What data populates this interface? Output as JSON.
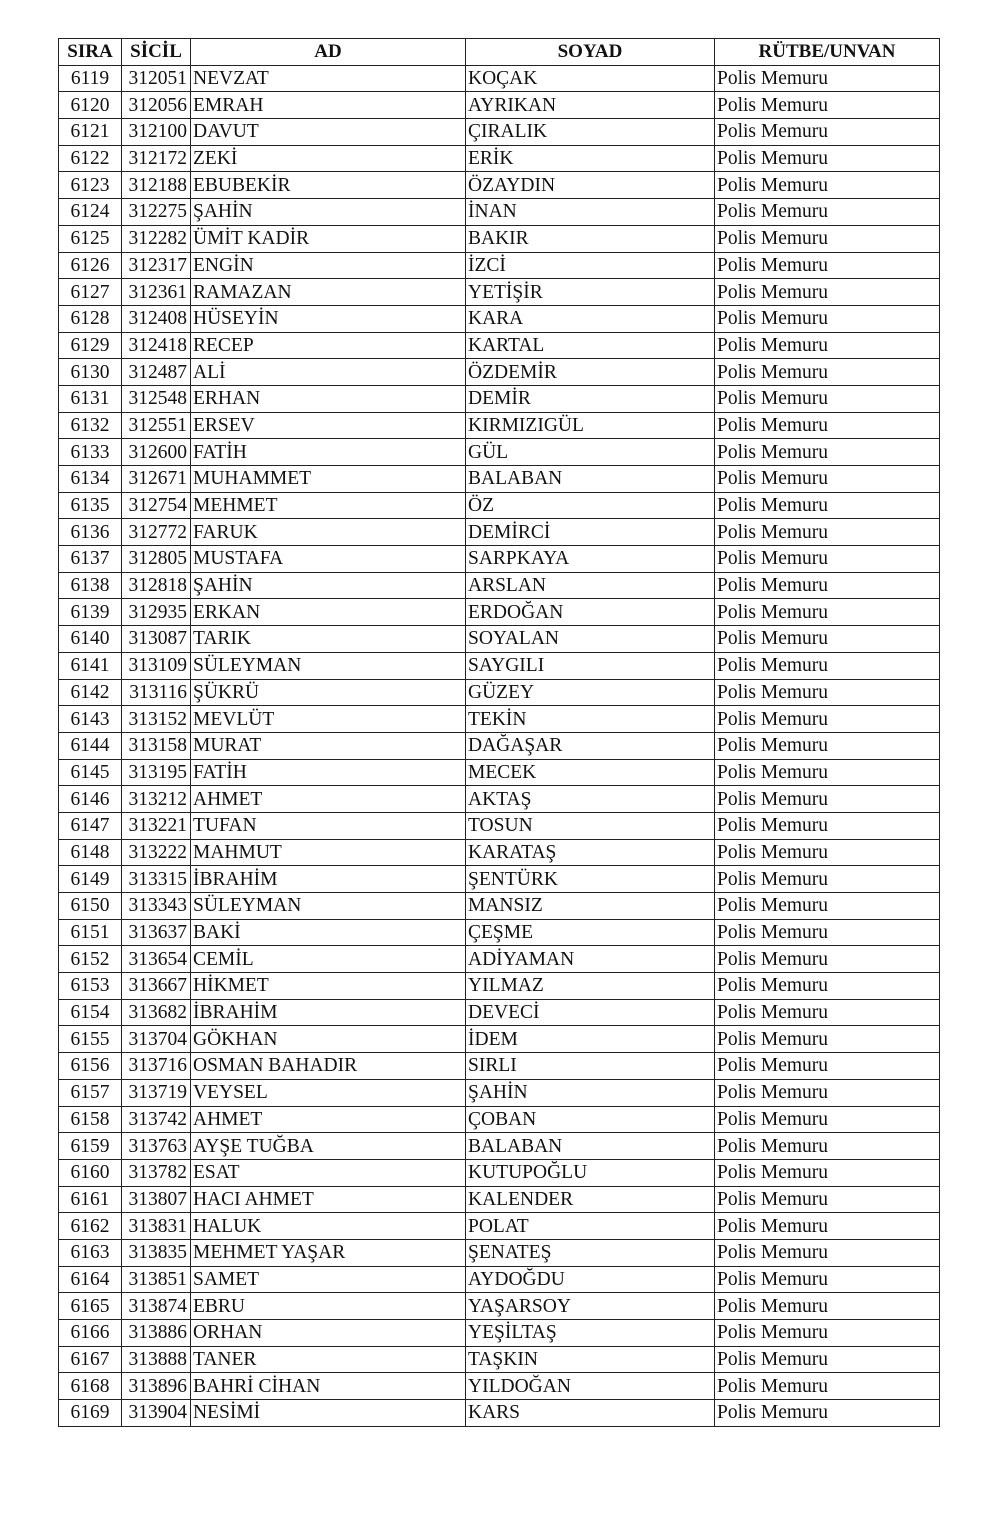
{
  "headers": [
    "SIRA",
    "SİCİL",
    "AD",
    "SOYAD",
    "RÜTBE/UNVAN"
  ],
  "rows": [
    [
      "6119",
      "312051",
      "NEVZAT",
      "KOÇAK",
      "Polis Memuru"
    ],
    [
      "6120",
      "312056",
      "EMRAH",
      "AYRIKAN",
      "Polis Memuru"
    ],
    [
      "6121",
      "312100",
      "DAVUT",
      "ÇIRALIK",
      "Polis Memuru"
    ],
    [
      "6122",
      "312172",
      "ZEKİ",
      "ERİK",
      "Polis Memuru"
    ],
    [
      "6123",
      "312188",
      "EBUBEKİR",
      "ÖZAYDIN",
      "Polis Memuru"
    ],
    [
      "6124",
      "312275",
      "ŞAHİN",
      "İNAN",
      "Polis Memuru"
    ],
    [
      "6125",
      "312282",
      "ÜMİT KADİR",
      "BAKIR",
      "Polis Memuru"
    ],
    [
      "6126",
      "312317",
      "ENGİN",
      "İZCİ",
      "Polis Memuru"
    ],
    [
      "6127",
      "312361",
      "RAMAZAN",
      "YETİŞİR",
      "Polis Memuru"
    ],
    [
      "6128",
      "312408",
      "HÜSEYİN",
      "KARA",
      "Polis Memuru"
    ],
    [
      "6129",
      "312418",
      "RECEP",
      "KARTAL",
      "Polis Memuru"
    ],
    [
      "6130",
      "312487",
      "ALİ",
      "ÖZDEMİR",
      "Polis Memuru"
    ],
    [
      "6131",
      "312548",
      "ERHAN",
      "DEMİR",
      "Polis Memuru"
    ],
    [
      "6132",
      "312551",
      "ERSEV",
      "KIRMIZIGÜL",
      "Polis Memuru"
    ],
    [
      "6133",
      "312600",
      "FATİH",
      "GÜL",
      "Polis Memuru"
    ],
    [
      "6134",
      "312671",
      "MUHAMMET",
      "BALABAN",
      "Polis Memuru"
    ],
    [
      "6135",
      "312754",
      "MEHMET",
      "ÖZ",
      "Polis Memuru"
    ],
    [
      "6136",
      "312772",
      "FARUK",
      "DEMİRCİ",
      "Polis Memuru"
    ],
    [
      "6137",
      "312805",
      "MUSTAFA",
      "SARPKAYA",
      "Polis Memuru"
    ],
    [
      "6138",
      "312818",
      "ŞAHİN",
      "ARSLAN",
      "Polis Memuru"
    ],
    [
      "6139",
      "312935",
      "ERKAN",
      "ERDOĞAN",
      "Polis Memuru"
    ],
    [
      "6140",
      "313087",
      "TARIK",
      "SOYALAN",
      "Polis Memuru"
    ],
    [
      "6141",
      "313109",
      "SÜLEYMAN",
      "SAYGILI",
      "Polis Memuru"
    ],
    [
      "6142",
      "313116",
      "ŞÜKRÜ",
      "GÜZEY",
      "Polis Memuru"
    ],
    [
      "6143",
      "313152",
      "MEVLÜT",
      "TEKİN",
      "Polis Memuru"
    ],
    [
      "6144",
      "313158",
      "MURAT",
      "DAĞAŞAR",
      "Polis Memuru"
    ],
    [
      "6145",
      "313195",
      "FATİH",
      "MECEK",
      "Polis Memuru"
    ],
    [
      "6146",
      "313212",
      "AHMET",
      "AKTAŞ",
      "Polis Memuru"
    ],
    [
      "6147",
      "313221",
      "TUFAN",
      "TOSUN",
      "Polis Memuru"
    ],
    [
      "6148",
      "313222",
      "MAHMUT",
      "KARATAŞ",
      "Polis Memuru"
    ],
    [
      "6149",
      "313315",
      "İBRAHİM",
      "ŞENTÜRK",
      "Polis Memuru"
    ],
    [
      "6150",
      "313343",
      "SÜLEYMAN",
      "MANSIZ",
      "Polis Memuru"
    ],
    [
      "6151",
      "313637",
      "BAKİ",
      "ÇEŞME",
      "Polis Memuru"
    ],
    [
      "6152",
      "313654",
      "CEMİL",
      "ADİYAMAN",
      "Polis Memuru"
    ],
    [
      "6153",
      "313667",
      "HİKMET",
      "YILMAZ",
      "Polis Memuru"
    ],
    [
      "6154",
      "313682",
      "İBRAHİM",
      "DEVECİ",
      "Polis Memuru"
    ],
    [
      "6155",
      "313704",
      "GÖKHAN",
      "İDEM",
      "Polis Memuru"
    ],
    [
      "6156",
      "313716",
      "OSMAN BAHADIR",
      "SIRLI",
      "Polis Memuru"
    ],
    [
      "6157",
      "313719",
      "VEYSEL",
      "ŞAHİN",
      "Polis Memuru"
    ],
    [
      "6158",
      "313742",
      "AHMET",
      "ÇOBAN",
      "Polis Memuru"
    ],
    [
      "6159",
      "313763",
      "AYŞE TUĞBA",
      "BALABAN",
      "Polis Memuru"
    ],
    [
      "6160",
      "313782",
      "ESAT",
      "KUTUPOĞLU",
      "Polis Memuru"
    ],
    [
      "6161",
      "313807",
      "HACI AHMET",
      "KALENDER",
      "Polis Memuru"
    ],
    [
      "6162",
      "313831",
      "HALUK",
      "POLAT",
      "Polis Memuru"
    ],
    [
      "6163",
      "313835",
      "MEHMET YAŞAR",
      "ŞENATEŞ",
      "Polis Memuru"
    ],
    [
      "6164",
      "313851",
      "SAMET",
      "AYDOĞDU",
      "Polis Memuru"
    ],
    [
      "6165",
      "313874",
      "EBRU",
      "YAŞARSOY",
      "Polis Memuru"
    ],
    [
      "6166",
      "313886",
      "ORHAN",
      "YEŞİLTAŞ",
      "Polis Memuru"
    ],
    [
      "6167",
      "313888",
      "TANER",
      "TAŞKIN",
      "Polis Memuru"
    ],
    [
      "6168",
      "313896",
      "BAHRİ CİHAN",
      "YILDOĞAN",
      "Polis Memuru"
    ],
    [
      "6169",
      "313904",
      "NESİMİ",
      "KARS",
      "Polis Memuru"
    ]
  ]
}
